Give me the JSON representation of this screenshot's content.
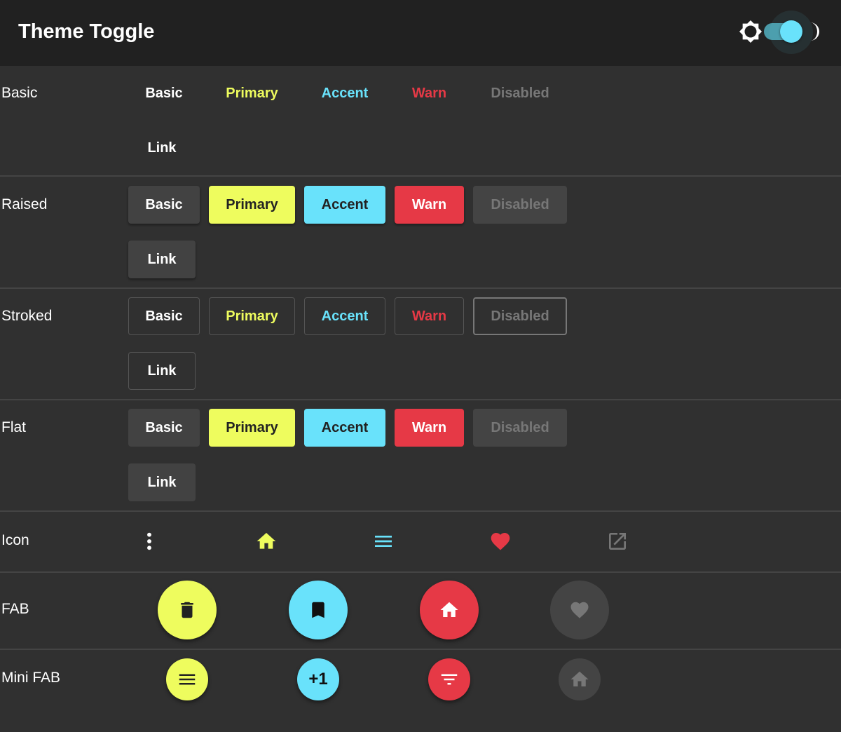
{
  "header": {
    "title": "Theme Toggle",
    "theme_toggle": {
      "left_icon": "sun-icon",
      "right_icon": "moon-icon",
      "dark_mode": true
    }
  },
  "colors": {
    "primary": "#eefc5e",
    "accent": "#69e2fb",
    "warn": "#e63946",
    "background": "#303030",
    "toolbar": "#212121"
  },
  "sections": {
    "basic": {
      "label": "Basic",
      "buttons": [
        "Basic",
        "Primary",
        "Accent",
        "Warn",
        "Disabled",
        "Link"
      ]
    },
    "raised": {
      "label": "Raised",
      "buttons": [
        "Basic",
        "Primary",
        "Accent",
        "Warn",
        "Disabled",
        "Link"
      ]
    },
    "stroked": {
      "label": "Stroked",
      "buttons": [
        "Basic",
        "Primary",
        "Accent",
        "Warn",
        "Disabled",
        "Link"
      ]
    },
    "flat": {
      "label": "Flat",
      "buttons": [
        "Basic",
        "Primary",
        "Accent",
        "Warn",
        "Disabled",
        "Link"
      ]
    },
    "icon": {
      "label": "Icon",
      "icons": [
        "more-vert-icon",
        "home-icon",
        "menu-icon",
        "heart-icon",
        "open-in-new-icon"
      ]
    },
    "fab": {
      "label": "FAB",
      "icons": [
        "delete-icon",
        "bookmark-icon",
        "home-icon",
        "heart-icon"
      ]
    },
    "mini_fab": {
      "label": "Mini FAB",
      "icons": [
        "menu-icon",
        "plus-one-icon",
        "filter-icon",
        "home-icon"
      ],
      "plus_one_text": "+1"
    }
  }
}
